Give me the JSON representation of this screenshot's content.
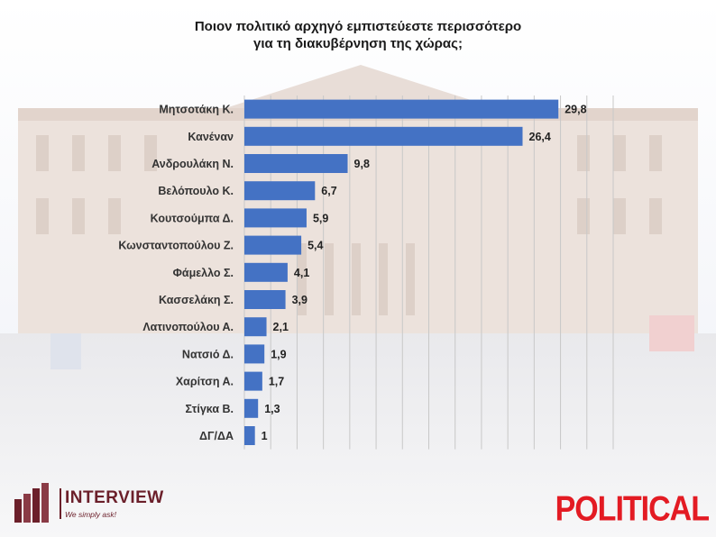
{
  "title_line1": "Ποιον πολιτικό αρχηγό εμπιστεύεστε περισσότερο",
  "title_line2": "για τη διακυβέρνηση της χώρας;",
  "brands": {
    "left_name": "INTERVIEW",
    "left_tagline": "We simply ask!",
    "right_name": "POLITICAL"
  },
  "colors": {
    "bar": "#4472c4",
    "brand_left": "#6b1f2a",
    "brand_right": "#e31b23"
  },
  "chart_data": {
    "type": "bar",
    "orientation": "horizontal",
    "title": "Ποιον πολιτικό αρχηγό εμπιστεύεστε περισσότερο για τη διακυβέρνηση της χώρας;",
    "categories": [
      "Μητσοτάκη Κ.",
      "Κανέναν",
      "Ανδρουλάκη Ν.",
      "Βελόπουλο Κ.",
      "Κουτσούμπα Δ.",
      "Κωνσταντοπούλου Ζ.",
      "Φάμελλο Σ.",
      "Κασσελάκη Σ.",
      "Λατινοπούλου Α.",
      "Νατσιό Δ.",
      "Χαρίτση Α.",
      "Στίγκα Β.",
      "ΔΓ/ΔΑ"
    ],
    "values": [
      29.8,
      26.4,
      9.8,
      6.7,
      5.9,
      5.4,
      4.1,
      3.9,
      2.1,
      1.9,
      1.7,
      1.3,
      1
    ],
    "value_labels": [
      "29,8",
      "26,4",
      "9,8",
      "6,7",
      "5,9",
      "5,4",
      "4,1",
      "3,9",
      "2,1",
      "1,9",
      "1,7",
      "1,3",
      "1"
    ],
    "xlim": [
      0,
      35
    ],
    "grid": true,
    "legend": "none"
  }
}
